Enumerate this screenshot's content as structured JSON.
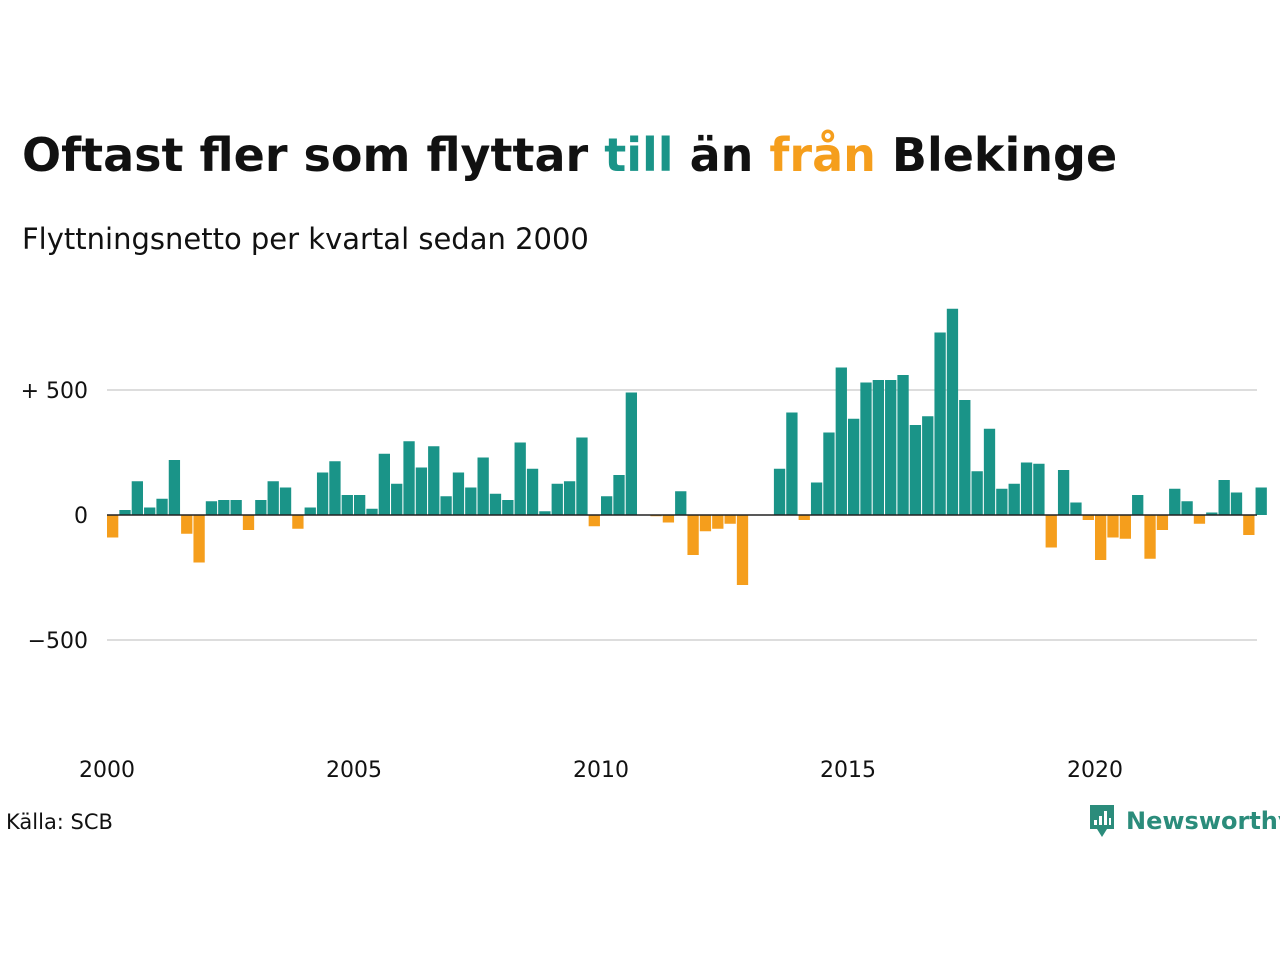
{
  "title": {
    "part1": "Oftast fler som flyttar ",
    "highlight_to": "till",
    "part2": " än ",
    "highlight_from": "från",
    "part3": " Blekinge"
  },
  "subtitle": "Flyttningsnetto per kvartal sedan 2000",
  "source": "Källa: SCB",
  "brand": {
    "name": "Newsworthy",
    "icon": "chat-bar-chart-icon"
  },
  "colors": {
    "positive": "#1a9488",
    "negative": "#f59e1c",
    "text": "#111111",
    "grid": "#dddddd",
    "brand": "#2b8c7b"
  },
  "chart_data": {
    "type": "bar",
    "title": "Oftast fler som flyttar till än från Blekinge",
    "subtitle": "Flyttningsnetto per kvartal sedan 2000",
    "xlabel": "",
    "ylabel": "",
    "ylim": [
      -800,
      850
    ],
    "yticks": [
      {
        "value": 500,
        "label": "+ 500"
      },
      {
        "value": 0,
        "label": "0"
      },
      {
        "value": -500,
        "label": "−500"
      }
    ],
    "xticks": [
      {
        "value": 2000,
        "label": "2000"
      },
      {
        "value": 2005,
        "label": "2005"
      },
      {
        "value": 2010,
        "label": "2010"
      },
      {
        "value": 2015,
        "label": "2015"
      },
      {
        "value": 2020,
        "label": "2020"
      }
    ],
    "x_start": 2000,
    "periods_per_year": 4,
    "grid": true,
    "values": [
      -90,
      20,
      135,
      30,
      65,
      220,
      -75,
      -190,
      55,
      60,
      60,
      -60,
      60,
      135,
      110,
      -55,
      30,
      170,
      215,
      80,
      80,
      25,
      245,
      125,
      295,
      190,
      275,
      75,
      170,
      110,
      230,
      85,
      60,
      290,
      185,
      15,
      125,
      135,
      310,
      -45,
      75,
      160,
      490,
      0,
      -5,
      -30,
      95,
      -160,
      -65,
      -55,
      -35,
      -280,
      0,
      0,
      185,
      410,
      -20,
      130,
      330,
      590,
      385,
      530,
      540,
      540,
      560,
      360,
      395,
      730,
      825,
      460,
      175,
      345,
      105,
      125,
      210,
      205,
      -130,
      180,
      50,
      -20,
      -180,
      -90,
      -95,
      80,
      -175,
      -60,
      105,
      55,
      -35,
      10,
      140,
      90,
      -80,
      110
    ]
  }
}
